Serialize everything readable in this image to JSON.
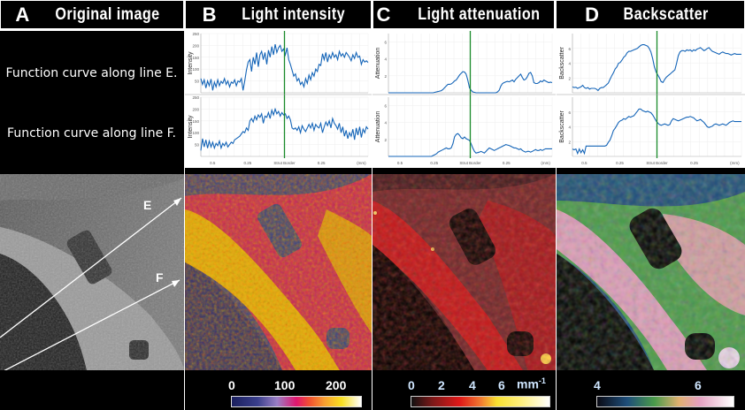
{
  "headers": [
    {
      "letter": "A",
      "title": "Original image"
    },
    {
      "letter": "B",
      "title": "Light intensity"
    },
    {
      "letter": "C",
      "title": "Light attenuation"
    },
    {
      "letter": "D",
      "title": "Backscatter"
    }
  ],
  "row_labels": {
    "line_e": "Function curve along line E.",
    "line_f": "Function curve along line F."
  },
  "image_annotations": {
    "line_e": "E",
    "line_f": "F"
  },
  "colorbars": {
    "intensity": {
      "ticks": [
        "0",
        "100",
        "200"
      ]
    },
    "attenuation": {
      "ticks": [
        "0",
        "2",
        "4",
        "6"
      ],
      "unit": "mm",
      "unit_exp": "-1"
    },
    "backscatter": {
      "ticks": [
        "4",
        "6"
      ]
    }
  },
  "x_axis": {
    "ticks": [
      "0.5",
      "0.25",
      "Strut Border",
      "0.25",
      "(mm)"
    ]
  },
  "chart_data": [
    {
      "type": "line",
      "id": "intensity-E",
      "ylabel": "Intensity",
      "ylim": [
        0,
        250
      ],
      "yticks": [
        50,
        100,
        150,
        200,
        250
      ],
      "marker_x": 0.5,
      "values": [
        60,
        35,
        55,
        20,
        50,
        30,
        58,
        10,
        45,
        25,
        55,
        30,
        48,
        40,
        60,
        35,
        50,
        25,
        45,
        40,
        55,
        30,
        50,
        45,
        60,
        10,
        50,
        95,
        130,
        140,
        90,
        150,
        120,
        170,
        110,
        160,
        175,
        140,
        170,
        120,
        180,
        150,
        195,
        160,
        205,
        170,
        190,
        200,
        175,
        185,
        160,
        190,
        140,
        120,
        95,
        70,
        80,
        50,
        60,
        35,
        45,
        25,
        60,
        40,
        75,
        55,
        85,
        70,
        100,
        90,
        120,
        115,
        165,
        140,
        170,
        130,
        160,
        145,
        170,
        150,
        160,
        140,
        175,
        155,
        165,
        150,
        170,
        160,
        150,
        135,
        160,
        145,
        170,
        150,
        155,
        120,
        140,
        130,
        135,
        128
      ]
    },
    {
      "type": "line",
      "id": "intensity-F",
      "ylabel": "Intensity",
      "ylim": [
        0,
        250
      ],
      "yticks": [
        50,
        100,
        150,
        200,
        250
      ],
      "marker_x": 0.5,
      "values": [
        25,
        75,
        40,
        70,
        35,
        65,
        40,
        60,
        35,
        55,
        45,
        65,
        35,
        55,
        45,
        60,
        40,
        50,
        60,
        55,
        70,
        75,
        80,
        85,
        95,
        105,
        100,
        120,
        110,
        150,
        160,
        145,
        170,
        155,
        175,
        165,
        180,
        140,
        170,
        165,
        185,
        160,
        195,
        175,
        200,
        180,
        190,
        170,
        185,
        175,
        180,
        160,
        170,
        155,
        120,
        115,
        120,
        110,
        125,
        100,
        130,
        115,
        105,
        120,
        135,
        120,
        140,
        110,
        135,
        125,
        120,
        140,
        100,
        125,
        145,
        130,
        150,
        120,
        160,
        140,
        130,
        115,
        140,
        100,
        125,
        85,
        110,
        75,
        100,
        85,
        115,
        70,
        120,
        90,
        125,
        80,
        115,
        100,
        125,
        115
      ]
    },
    {
      "type": "line",
      "id": "attenuation-E",
      "ylabel": "Attenuation",
      "ylim": [
        0,
        7
      ],
      "yticks": [
        2,
        4,
        6
      ],
      "marker_x": 0.5,
      "values": [
        0,
        0,
        0,
        0,
        0,
        0,
        0,
        0,
        0,
        0,
        0,
        0,
        0,
        0,
        0,
        0,
        0,
        0,
        0,
        0,
        0,
        0,
        0,
        0,
        0,
        0,
        0,
        0,
        0.05,
        0.1,
        0.15,
        0.2,
        0.25,
        0.4,
        0.6,
        0.8,
        1.0,
        1.0,
        1.05,
        1.2,
        1.4,
        1.5,
        1.8,
        2.1,
        2.3,
        2.5,
        2.45,
        2.2,
        1.5,
        0.6,
        0.3,
        0.1,
        0.05,
        0,
        0,
        0,
        0,
        0,
        0,
        0,
        0,
        0,
        0,
        0,
        0,
        0,
        0.1,
        0.3,
        0.8,
        1.1,
        1.2,
        1.3,
        1.35,
        1.3,
        1.4,
        1.5,
        1.3,
        1.6,
        1.8,
        2.0,
        2.2,
        1.8,
        1.5,
        1.6,
        1.9,
        2.3,
        2.4,
        2.0,
        1.2,
        1.1,
        1.1,
        1.2,
        1.4,
        1.3,
        1.5,
        1.4,
        1.3,
        1.2,
        1.25,
        1.2
      ]
    },
    {
      "type": "line",
      "id": "attenuation-F",
      "ylabel": "Attenuation",
      "ylim": [
        0,
        7
      ],
      "yticks": [
        2,
        4,
        6
      ],
      "marker_x": 0.5,
      "values": [
        0,
        0,
        0,
        0,
        0,
        0,
        0,
        0,
        0,
        0,
        0,
        0,
        0,
        0,
        0,
        0,
        0,
        0,
        0,
        0,
        0,
        0,
        0,
        0,
        0,
        0,
        0,
        0.1,
        0.2,
        0.3,
        0.5,
        0.6,
        0.7,
        0.8,
        0.9,
        1.0,
        0.9,
        0.9,
        1.0,
        1.5,
        2.3,
        2.6,
        2.7,
        2.5,
        2.2,
        2.1,
        2.3,
        2.1,
        2.0,
        1.9,
        1.5,
        1.0,
        0.6,
        0.4,
        0.45,
        0.5,
        0.6,
        0.5,
        0.4,
        0.6,
        0.8,
        1.0,
        0.9,
        0.8,
        0.7,
        0.8,
        0.9,
        1.0,
        1.1,
        1.2,
        1.3,
        1.4,
        1.35,
        1.3,
        1.2,
        1.1,
        1.0,
        1.0,
        0.9,
        0.8,
        0.9,
        0.7,
        0.6,
        0.5,
        0.6,
        0.6,
        0.5,
        0.6,
        0.7,
        0.8,
        0.7,
        0.7,
        0.8,
        0.7,
        0.8,
        0.9,
        0.9,
        0.9,
        0.9,
        0.9
      ]
    },
    {
      "type": "line",
      "id": "backscatter-E",
      "ylabel": "Backscatter",
      "ylim": [
        0,
        8
      ],
      "yticks": [
        2,
        4,
        6
      ],
      "marker_x": 0.5,
      "values": [
        0.8,
        0.7,
        0.75,
        0.6,
        0.7,
        0.8,
        1.0,
        0.7,
        0.6,
        0.7,
        0.5,
        0.6,
        0.6,
        0.6,
        0.5,
        0.3,
        0.6,
        0.7,
        0.7,
        0.9,
        1.1,
        1.3,
        1.8,
        2.3,
        2.7,
        3.2,
        3.5,
        4.0,
        4.1,
        4.4,
        4.8,
        5.0,
        5.4,
        5.6,
        5.6,
        5.7,
        5.8,
        5.9,
        6.0,
        6.2,
        6.4,
        6.5,
        6.5,
        6.4,
        6.3,
        6.0,
        5.5,
        4.6,
        3.5,
        2.8,
        2.4,
        2.0,
        1.5,
        1.4,
        1.8,
        2.1,
        2.3,
        2.5,
        2.7,
        2.9,
        3.1,
        4.0,
        5.0,
        5.5,
        5.7,
        5.7,
        5.6,
        5.8,
        5.7,
        5.8,
        5.6,
        5.8,
        5.7,
        5.9,
        6.0,
        6.1,
        5.9,
        5.7,
        5.8,
        6.0,
        6.1,
        5.8,
        5.6,
        5.5,
        5.4,
        5.3,
        5.2,
        5.4,
        5.5,
        5.4,
        5.3,
        5.3,
        5.2,
        5.1,
        5.2,
        5.3,
        5.2,
        5.2,
        5.2,
        5.2
      ]
    },
    {
      "type": "line",
      "id": "backscatter-F",
      "ylabel": "Backscatter",
      "ylim": [
        0,
        8
      ],
      "yticks": [
        2,
        4,
        6
      ],
      "marker_x": 0.5,
      "values": [
        1.0,
        0.9,
        1.0,
        0.4,
        1.0,
        0.5,
        0.9,
        0.4,
        1.4,
        1.4,
        1.4,
        1.4,
        1.4,
        1.4,
        1.4,
        1.4,
        1.4,
        1.4,
        1.4,
        1.4,
        1.5,
        1.9,
        2.2,
        2.8,
        3.5,
        3.8,
        4.2,
        4.6,
        4.8,
        4.9,
        5.1,
        5.0,
        5.2,
        5.4,
        5.3,
        5.4,
        5.5,
        5.8,
        6.1,
        6.4,
        6.4,
        6.2,
        6.1,
        6.0,
        6.1,
        6.0,
        5.9,
        5.6,
        5.2,
        4.8,
        4.5,
        4.3,
        4.2,
        4.3,
        4.4,
        4.3,
        4.2,
        4.3,
        4.8,
        5.1,
        5.0,
        4.9,
        4.8,
        4.9,
        5.0,
        5.1,
        5.2,
        5.3,
        5.3,
        5.4,
        5.3,
        5.2,
        5.0,
        4.8,
        4.9,
        5.0,
        4.8,
        4.6,
        4.3,
        4.0,
        3.9,
        4.0,
        4.1,
        4.3,
        4.4,
        4.3,
        4.2,
        4.3,
        4.4,
        4.3,
        4.2,
        4.4,
        4.6,
        4.7,
        4.8,
        4.7,
        4.7,
        4.7,
        4.7,
        4.7
      ]
    }
  ],
  "colors": {
    "curve": "#1565b8",
    "marker": "#1a8a2a",
    "header_bg": "#000000",
    "header_text": "#ffffff"
  }
}
